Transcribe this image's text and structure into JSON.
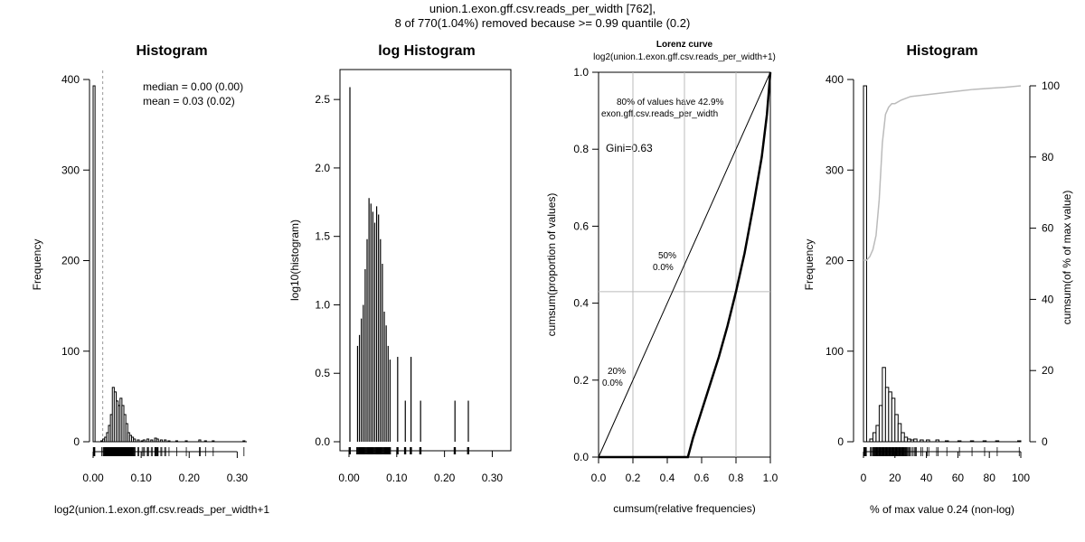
{
  "header": {
    "title_line1": "union.1.exon.gff.csv.reads_per_width [762],",
    "title_line2": "8 of 770(1.04%) removed because >= 0.99 quantile (0.2)"
  },
  "chart_data": [
    {
      "type": "bar",
      "title": "Histogram",
      "xlabel": "log2(union.1.exon.gff.csv.reads_per_width+1",
      "ylabel": "Frequency",
      "xlim": [
        0,
        0.32
      ],
      "ylim": [
        0,
        400
      ],
      "x_ticks": [
        "0.00",
        "0.10",
        "0.20",
        "0.30"
      ],
      "y_ticks": [
        "0",
        "100",
        "200",
        "300",
        "400"
      ],
      "bin_width": 0.004,
      "bin_starts": [
        0.0,
        0.016,
        0.02,
        0.024,
        0.028,
        0.032,
        0.036,
        0.04,
        0.044,
        0.048,
        0.052,
        0.056,
        0.06,
        0.064,
        0.068,
        0.072,
        0.076,
        0.08,
        0.084,
        0.092,
        0.1,
        0.104,
        0.112,
        0.12,
        0.128,
        0.132,
        0.14,
        0.148,
        0.156,
        0.172,
        0.192,
        0.22,
        0.232,
        0.248,
        0.312
      ],
      "values": [
        393,
        1,
        3,
        5,
        10,
        18,
        30,
        60,
        55,
        45,
        40,
        48,
        40,
        30,
        20,
        10,
        7,
        5,
        3,
        2,
        1,
        2,
        3,
        2,
        4,
        3,
        2,
        2,
        1,
        1,
        1,
        2,
        1,
        1,
        1
      ],
      "median_line_x": 0.02,
      "annotations": [
        "median = 0.00 (0.00)",
        "mean = 0.03 (0.02)"
      ]
    },
    {
      "type": "bar",
      "title": "log Histogram",
      "ylabel": "log10(histogram)",
      "xlim": [
        0,
        0.32
      ],
      "ylim": [
        0,
        2.6
      ],
      "x_ticks": [
        "0.00",
        "0.10",
        "0.20",
        "0.30"
      ],
      "y_ticks": [
        "0.0",
        "0.5",
        "1.0",
        "1.5",
        "2.0",
        "2.5"
      ],
      "x": [
        0.0,
        0.016,
        0.02,
        0.024,
        0.028,
        0.032,
        0.036,
        0.04,
        0.044,
        0.048,
        0.052,
        0.056,
        0.06,
        0.064,
        0.068,
        0.072,
        0.076,
        0.08,
        0.084,
        0.1,
        0.116,
        0.128,
        0.148,
        0.22,
        0.248
      ],
      "values": [
        2.59,
        0.7,
        0.78,
        0.9,
        1.0,
        1.26,
        1.48,
        1.78,
        1.74,
        1.68,
        1.6,
        1.72,
        1.66,
        1.48,
        1.3,
        0.95,
        0.85,
        0.7,
        0.6,
        0.62,
        0.3,
        0.62,
        0.3,
        0.3,
        0.3
      ]
    },
    {
      "type": "line",
      "title": "Lorenz curve",
      "subtitle": "log2(union.1.exon.gff.csv.reads_per_width+1)",
      "xlabel": "cumsum(relative frequencies)",
      "ylabel": "cumsum(proportion of values)",
      "xlim": [
        0,
        1
      ],
      "ylim": [
        0,
        1
      ],
      "x_ticks": [
        "0.0",
        "0.2",
        "0.4",
        "0.6",
        "0.8",
        "1.0"
      ],
      "y_ticks": [
        "0.0",
        "0.2",
        "0.4",
        "0.6",
        "0.8",
        "1.0"
      ],
      "curve": {
        "x": [
          0.0,
          0.5,
          0.52,
          0.55,
          0.6,
          0.65,
          0.7,
          0.75,
          0.8,
          0.85,
          0.9,
          0.95,
          0.98,
          1.0
        ],
        "y": [
          0.0,
          0.0,
          0.0,
          0.05,
          0.12,
          0.19,
          0.26,
          0.34,
          0.43,
          0.53,
          0.65,
          0.78,
          0.89,
          1.0
        ]
      },
      "equality_line": true,
      "reference_vlines": [
        0.2,
        0.5,
        0.8
      ],
      "reference_hline": 0.43,
      "annotations": {
        "top_line1": "80% of values have 42.9%",
        "top_line2": "exon.gff.csv.reads_per_width",
        "gini": "Gini=0.63",
        "p50_line1": "50%",
        "p50_line2": "0.0%",
        "p20_line1": "20%",
        "p20_line2": "0.0%"
      }
    },
    {
      "type": "bar",
      "title": "Histogram",
      "xlabel": "% of max value 0.24 (non-log)",
      "ylabel": "Frequency",
      "ylabel_right": "cumsum(of % of max value)",
      "xlim": [
        0,
        100
      ],
      "ylim": [
        0,
        400
      ],
      "ylim_right": [
        0,
        100
      ],
      "x_ticks": [
        "0",
        "20",
        "40",
        "60",
        "80",
        "100"
      ],
      "y_ticks": [
        "0",
        "100",
        "200",
        "300",
        "400"
      ],
      "y_ticks_right": [
        "0",
        "20",
        "40",
        "60",
        "80",
        "100"
      ],
      "bin_width": 2,
      "bin_starts": [
        0,
        4,
        6,
        8,
        10,
        12,
        14,
        16,
        18,
        20,
        22,
        24,
        26,
        28,
        30,
        32,
        36,
        40,
        46,
        52,
        60,
        68,
        76,
        84,
        98
      ],
      "values": [
        393,
        3,
        10,
        18,
        40,
        82,
        60,
        55,
        48,
        30,
        20,
        10,
        5,
        3,
        2,
        3,
        2,
        2,
        2,
        1,
        1,
        1,
        1,
        1,
        1
      ],
      "cumulative": {
        "x": [
          0,
          2,
          4,
          6,
          8,
          10,
          12,
          14,
          16,
          18,
          20,
          24,
          30,
          40,
          50,
          60,
          70,
          80,
          90,
          100
        ],
        "y": [
          51,
          51,
          52,
          54,
          58,
          68,
          84,
          92,
          94,
          95,
          95,
          96,
          97,
          97.5,
          98,
          98.5,
          99,
          99.3,
          99.6,
          100
        ]
      }
    }
  ]
}
